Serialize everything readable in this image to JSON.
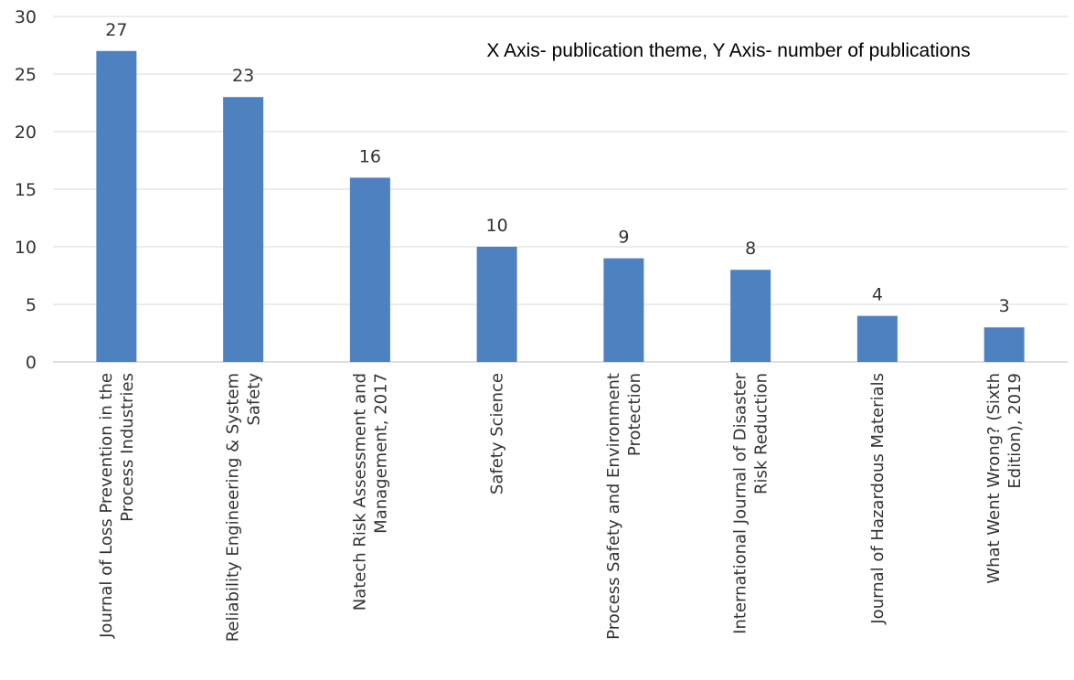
{
  "chart_data": {
    "type": "bar",
    "title": "",
    "annotation": "X Axis- publication theme, Y Axis- number of publications",
    "xlabel": "",
    "ylabel": "",
    "ylim": [
      0,
      30
    ],
    "y_ticks": [
      "0",
      "5",
      "10",
      "15",
      "20",
      "25",
      "30"
    ],
    "grid": true,
    "legend": "none",
    "bar_color": "#4e81c0",
    "categories": [
      [
        "Journal of Loss Prevention in the",
        "Process Industries"
      ],
      [
        "Reliability Engineering & System",
        "Safety"
      ],
      [
        "Natech Risk Assessment and",
        "Management, 2017"
      ],
      [
        "Safety Science"
      ],
      [
        "Process Safety and Environment",
        "Protection"
      ],
      [
        "International Journal of Disaster",
        "Risk Reduction"
      ],
      [
        "Journal of Hazardous Materials"
      ],
      [
        "What Went Wrong? (Sixth",
        "Edition), 2019"
      ]
    ],
    "values": [
      27,
      23,
      16,
      10,
      9,
      8,
      4,
      3
    ],
    "data_labels": [
      "27",
      "23",
      "16",
      "10",
      "9",
      "8",
      "4",
      "3"
    ]
  }
}
